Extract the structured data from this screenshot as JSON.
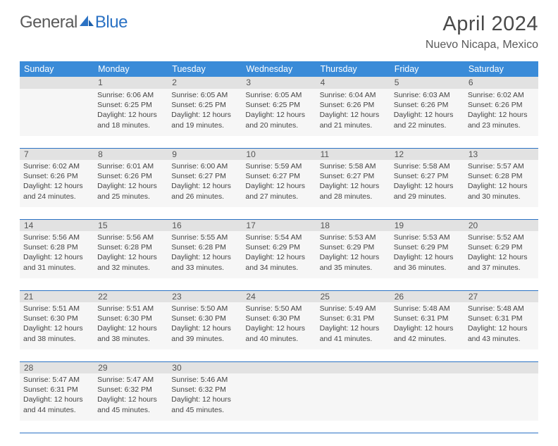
{
  "brand": {
    "word1": "General",
    "word2": "Blue",
    "icon_color": "#2b72c4"
  },
  "title": "April 2024",
  "location": "Nuevo Nicapa, Mexico",
  "colors": {
    "header_bg": "#3a8bd8",
    "header_text": "#ffffff",
    "daynum_bg": "#e2e2e2",
    "cell_bg": "#f6f6f6",
    "rule": "#2b72c4",
    "text": "#444444"
  },
  "weekdays": [
    "Sunday",
    "Monday",
    "Tuesday",
    "Wednesday",
    "Thursday",
    "Friday",
    "Saturday"
  ],
  "weeks": [
    [
      {
        "n": "",
        "sunrise": "",
        "sunset": "",
        "daylight": ""
      },
      {
        "n": "1",
        "sunrise": "Sunrise: 6:06 AM",
        "sunset": "Sunset: 6:25 PM",
        "daylight": "Daylight: 12 hours and 18 minutes."
      },
      {
        "n": "2",
        "sunrise": "Sunrise: 6:05 AM",
        "sunset": "Sunset: 6:25 PM",
        "daylight": "Daylight: 12 hours and 19 minutes."
      },
      {
        "n": "3",
        "sunrise": "Sunrise: 6:05 AM",
        "sunset": "Sunset: 6:25 PM",
        "daylight": "Daylight: 12 hours and 20 minutes."
      },
      {
        "n": "4",
        "sunrise": "Sunrise: 6:04 AM",
        "sunset": "Sunset: 6:26 PM",
        "daylight": "Daylight: 12 hours and 21 minutes."
      },
      {
        "n": "5",
        "sunrise": "Sunrise: 6:03 AM",
        "sunset": "Sunset: 6:26 PM",
        "daylight": "Daylight: 12 hours and 22 minutes."
      },
      {
        "n": "6",
        "sunrise": "Sunrise: 6:02 AM",
        "sunset": "Sunset: 6:26 PM",
        "daylight": "Daylight: 12 hours and 23 minutes."
      }
    ],
    [
      {
        "n": "7",
        "sunrise": "Sunrise: 6:02 AM",
        "sunset": "Sunset: 6:26 PM",
        "daylight": "Daylight: 12 hours and 24 minutes."
      },
      {
        "n": "8",
        "sunrise": "Sunrise: 6:01 AM",
        "sunset": "Sunset: 6:26 PM",
        "daylight": "Daylight: 12 hours and 25 minutes."
      },
      {
        "n": "9",
        "sunrise": "Sunrise: 6:00 AM",
        "sunset": "Sunset: 6:27 PM",
        "daylight": "Daylight: 12 hours and 26 minutes."
      },
      {
        "n": "10",
        "sunrise": "Sunrise: 5:59 AM",
        "sunset": "Sunset: 6:27 PM",
        "daylight": "Daylight: 12 hours and 27 minutes."
      },
      {
        "n": "11",
        "sunrise": "Sunrise: 5:58 AM",
        "sunset": "Sunset: 6:27 PM",
        "daylight": "Daylight: 12 hours and 28 minutes."
      },
      {
        "n": "12",
        "sunrise": "Sunrise: 5:58 AM",
        "sunset": "Sunset: 6:27 PM",
        "daylight": "Daylight: 12 hours and 29 minutes."
      },
      {
        "n": "13",
        "sunrise": "Sunrise: 5:57 AM",
        "sunset": "Sunset: 6:28 PM",
        "daylight": "Daylight: 12 hours and 30 minutes."
      }
    ],
    [
      {
        "n": "14",
        "sunrise": "Sunrise: 5:56 AM",
        "sunset": "Sunset: 6:28 PM",
        "daylight": "Daylight: 12 hours and 31 minutes."
      },
      {
        "n": "15",
        "sunrise": "Sunrise: 5:56 AM",
        "sunset": "Sunset: 6:28 PM",
        "daylight": "Daylight: 12 hours and 32 minutes."
      },
      {
        "n": "16",
        "sunrise": "Sunrise: 5:55 AM",
        "sunset": "Sunset: 6:28 PM",
        "daylight": "Daylight: 12 hours and 33 minutes."
      },
      {
        "n": "17",
        "sunrise": "Sunrise: 5:54 AM",
        "sunset": "Sunset: 6:29 PM",
        "daylight": "Daylight: 12 hours and 34 minutes."
      },
      {
        "n": "18",
        "sunrise": "Sunrise: 5:53 AM",
        "sunset": "Sunset: 6:29 PM",
        "daylight": "Daylight: 12 hours and 35 minutes."
      },
      {
        "n": "19",
        "sunrise": "Sunrise: 5:53 AM",
        "sunset": "Sunset: 6:29 PM",
        "daylight": "Daylight: 12 hours and 36 minutes."
      },
      {
        "n": "20",
        "sunrise": "Sunrise: 5:52 AM",
        "sunset": "Sunset: 6:29 PM",
        "daylight": "Daylight: 12 hours and 37 minutes."
      }
    ],
    [
      {
        "n": "21",
        "sunrise": "Sunrise: 5:51 AM",
        "sunset": "Sunset: 6:30 PM",
        "daylight": "Daylight: 12 hours and 38 minutes."
      },
      {
        "n": "22",
        "sunrise": "Sunrise: 5:51 AM",
        "sunset": "Sunset: 6:30 PM",
        "daylight": "Daylight: 12 hours and 38 minutes."
      },
      {
        "n": "23",
        "sunrise": "Sunrise: 5:50 AM",
        "sunset": "Sunset: 6:30 PM",
        "daylight": "Daylight: 12 hours and 39 minutes."
      },
      {
        "n": "24",
        "sunrise": "Sunrise: 5:50 AM",
        "sunset": "Sunset: 6:30 PM",
        "daylight": "Daylight: 12 hours and 40 minutes."
      },
      {
        "n": "25",
        "sunrise": "Sunrise: 5:49 AM",
        "sunset": "Sunset: 6:31 PM",
        "daylight": "Daylight: 12 hours and 41 minutes."
      },
      {
        "n": "26",
        "sunrise": "Sunrise: 5:48 AM",
        "sunset": "Sunset: 6:31 PM",
        "daylight": "Daylight: 12 hours and 42 minutes."
      },
      {
        "n": "27",
        "sunrise": "Sunrise: 5:48 AM",
        "sunset": "Sunset: 6:31 PM",
        "daylight": "Daylight: 12 hours and 43 minutes."
      }
    ],
    [
      {
        "n": "28",
        "sunrise": "Sunrise: 5:47 AM",
        "sunset": "Sunset: 6:31 PM",
        "daylight": "Daylight: 12 hours and 44 minutes."
      },
      {
        "n": "29",
        "sunrise": "Sunrise: 5:47 AM",
        "sunset": "Sunset: 6:32 PM",
        "daylight": "Daylight: 12 hours and 45 minutes."
      },
      {
        "n": "30",
        "sunrise": "Sunrise: 5:46 AM",
        "sunset": "Sunset: 6:32 PM",
        "daylight": "Daylight: 12 hours and 45 minutes."
      },
      {
        "n": "",
        "sunrise": "",
        "sunset": "",
        "daylight": ""
      },
      {
        "n": "",
        "sunrise": "",
        "sunset": "",
        "daylight": ""
      },
      {
        "n": "",
        "sunrise": "",
        "sunset": "",
        "daylight": ""
      },
      {
        "n": "",
        "sunrise": "",
        "sunset": "",
        "daylight": ""
      }
    ]
  ]
}
